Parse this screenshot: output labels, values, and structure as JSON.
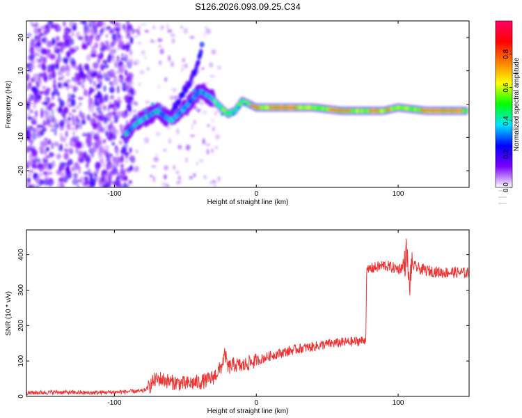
{
  "title": "S126.2026.093.09.25.C34",
  "chart_data": [
    {
      "type": "heatmap",
      "title": "S126.2026.093.09.25.C34",
      "xlabel": "Height of straight line (km)",
      "ylabel": "Frequency (Hz)",
      "xlim": [
        -162,
        150
      ],
      "ylim": [
        -25,
        25
      ],
      "xticks": [
        -100,
        0,
        100
      ],
      "xtick_labels": [
        "-100",
        "0",
        "100"
      ],
      "yticks": [
        -20,
        -10,
        0,
        10,
        20
      ],
      "ytick_labels": [
        "-20",
        "-10",
        "0",
        "10",
        "20"
      ],
      "colorbar": {
        "label": "Normalized spectral amplitude",
        "range": [
          0,
          1
        ],
        "ticks": [
          0.0,
          0.2,
          0.4,
          0.6,
          0.8
        ],
        "tick_labels": [
          "0.0",
          "0.2",
          "0.4",
          "0.6",
          "0.8"
        ],
        "colors": [
          "#ffffff",
          "#7b00ff",
          "#0000ff",
          "#00e5ff",
          "#00ff00",
          "#ffff00",
          "#ff8000",
          "#ff0000",
          "#ff0066"
        ]
      },
      "ridge": {
        "x": [
          -92,
          -85,
          -78,
          -70,
          -60,
          -50,
          -40,
          -32,
          -25,
          -20,
          -15,
          -10,
          -5,
          0,
          20,
          40,
          60,
          80,
          90,
          100,
          120,
          148
        ],
        "y": [
          -9,
          -6,
          -4,
          -2,
          -5,
          -1,
          4,
          2,
          -1,
          -3,
          -2,
          1,
          0,
          -1,
          -1,
          -1,
          -2,
          -2,
          -2,
          -1,
          -2,
          -2
        ]
      },
      "branch": {
        "x": [
          -60,
          -52,
          -45,
          -40,
          -38
        ],
        "y": [
          -3,
          3,
          8,
          14,
          18
        ]
      }
    },
    {
      "type": "line",
      "xlabel": "Height of straight line (km)",
      "ylabel": "SNR (10 * v/v)",
      "xlim": [
        -162,
        150
      ],
      "ylim": [
        0,
        470
      ],
      "xticks": [
        -100,
        0,
        100
      ],
      "xtick_labels": [
        "-100",
        "0",
        "100"
      ],
      "yticks": [
        0,
        100,
        200,
        300,
        400
      ],
      "ytick_labels": [
        "0",
        "100",
        "200",
        "300",
        "400"
      ],
      "color": "#ee3333",
      "series": [
        {
          "name": "SNR",
          "x": [
            -162,
            -140,
            -120,
            -100,
            -80,
            -76,
            -72,
            -68,
            -64,
            -60,
            -55,
            -50,
            -45,
            -40,
            -35,
            -30,
            -25,
            -22,
            -20,
            -18,
            -15,
            -10,
            -5,
            0,
            10,
            20,
            30,
            40,
            50,
            60,
            70,
            76,
            77,
            78,
            80,
            85,
            90,
            95,
            100,
            103,
            105,
            106,
            107,
            108,
            109,
            110,
            115,
            120,
            130,
            140,
            150
          ],
          "y": [
            10,
            12,
            10,
            12,
            15,
            25,
            45,
            50,
            45,
            40,
            38,
            35,
            38,
            40,
            45,
            55,
            80,
            120,
            80,
            85,
            90,
            85,
            95,
            100,
            115,
            125,
            135,
            140,
            148,
            152,
            155,
            158,
            165,
            350,
            360,
            365,
            370,
            365,
            360,
            365,
            380,
            420,
            350,
            300,
            360,
            370,
            360,
            355,
            350,
            350,
            348
          ]
        }
      ]
    }
  ]
}
